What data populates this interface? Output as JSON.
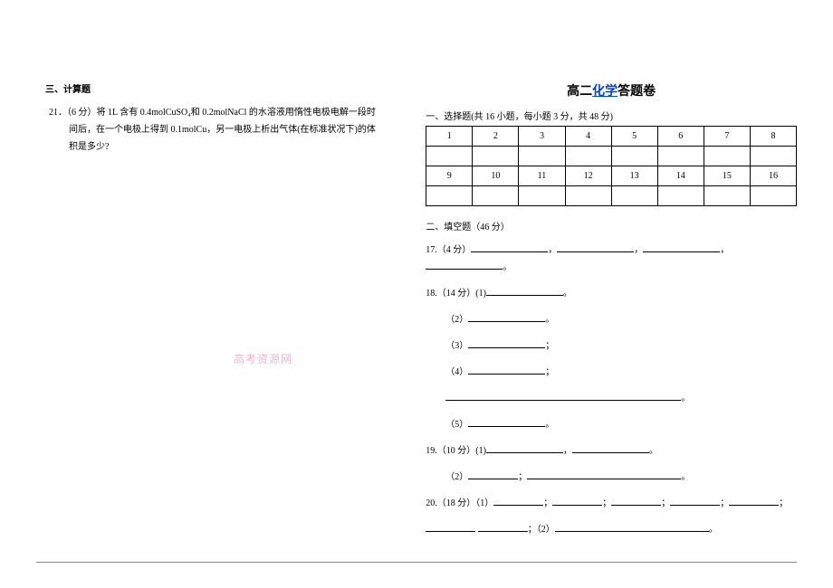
{
  "left": {
    "sec3_title": "三、计算题",
    "q21_l1": "21．（6 分）将 1L 含有 0.4molCuSO₄和 0.2molNaCl 的水溶液用惰性电极电解一段时",
    "q21_l2": "间后，在一个电极上得到 0.1molCu，另一电极上析出气体(在标准状况下)的体",
    "q21_l3": "积是多少?"
  },
  "right": {
    "title_prefix": "高二",
    "title_chem": "化学",
    "title_suffix": "答题卷",
    "sec1_line": "一、选择题(共 16 小题，每小题 3 分，共 48 分)",
    "row1": [
      "1",
      "2",
      "3",
      "4",
      "5",
      "6",
      "7",
      "8"
    ],
    "row2": [
      "9",
      "10",
      "11",
      "12",
      "13",
      "14",
      "15",
      "16"
    ],
    "sec2_line": "二、填空题（46 分）",
    "q17_label": "17.（4 分）",
    "q18_label": "18.（14 分）(1)",
    "p2": "（2）",
    "p3": "（3）",
    "p4": "（4）",
    "p5": "（5）",
    "q19_label": "19.（10 分）(1)",
    "q20_label": "20.（18 分）（1）"
  },
  "watermark": "高考资源网",
  "colors": {
    "link": "#0046c8",
    "watermark": "#e7b6d8",
    "text": "#000000",
    "bg": "#ffffff"
  }
}
